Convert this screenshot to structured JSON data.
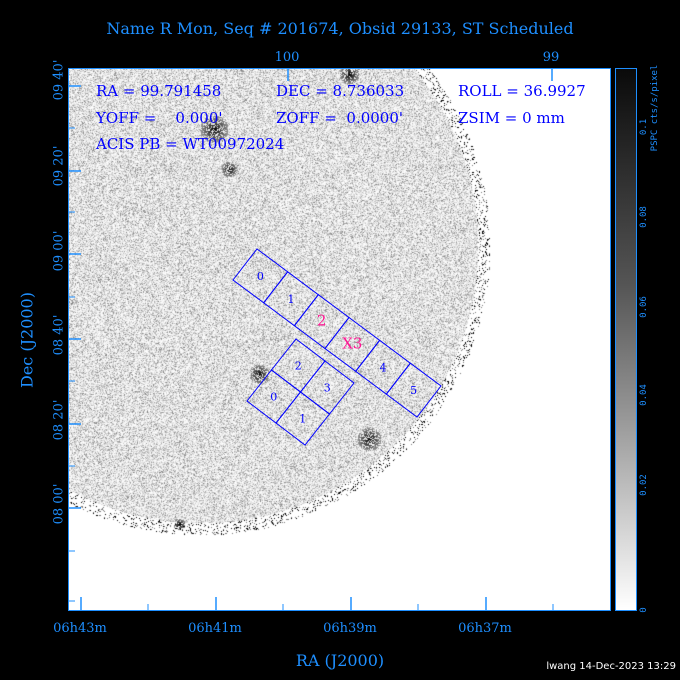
{
  "title": "Name R Mon, Seq # 201674, Obsid 29133, ST Scheduled",
  "info": {
    "ra": "RA = 99.791458",
    "dec": "DEC = 8.736033",
    "roll": "ROLL = 36.9927",
    "yoff": "YOFF =    0.000'",
    "zoff": "ZOFF =  0.0000'",
    "zsim": "ZSIM = 0 mm",
    "acis_pb": "ACIS PB = WT00972024"
  },
  "axes": {
    "xlabel": "RA (J2000)",
    "ylabel": "Dec (J2000)",
    "x_ticks": [
      "06h43m",
      "06h41m",
      "06h39m",
      "06h37m"
    ],
    "top_ticks": [
      "100",
      "99"
    ],
    "y_ticks": [
      "09 40'",
      "09 20'",
      "09 00'",
      "08 40'",
      "08 20'",
      "08 00'"
    ]
  },
  "colorbar": {
    "label": "PSPC cts/s/pixel",
    "ticks": [
      "0.1",
      "0.08",
      "0.06",
      "0.04",
      "0.02",
      "0"
    ]
  },
  "chips": {
    "acis_s": [
      "0",
      "1",
      "2",
      "X3",
      "4",
      "5"
    ],
    "acis_s_highlight": "2",
    "acis_i": [
      "0",
      "1",
      "2",
      "3"
    ]
  },
  "colors": {
    "axis": "#1e8fff",
    "chip": "#0000ff",
    "aimpoint": "#ff1493"
  },
  "footer": "lwang 14-Dec-2023 13:29"
}
